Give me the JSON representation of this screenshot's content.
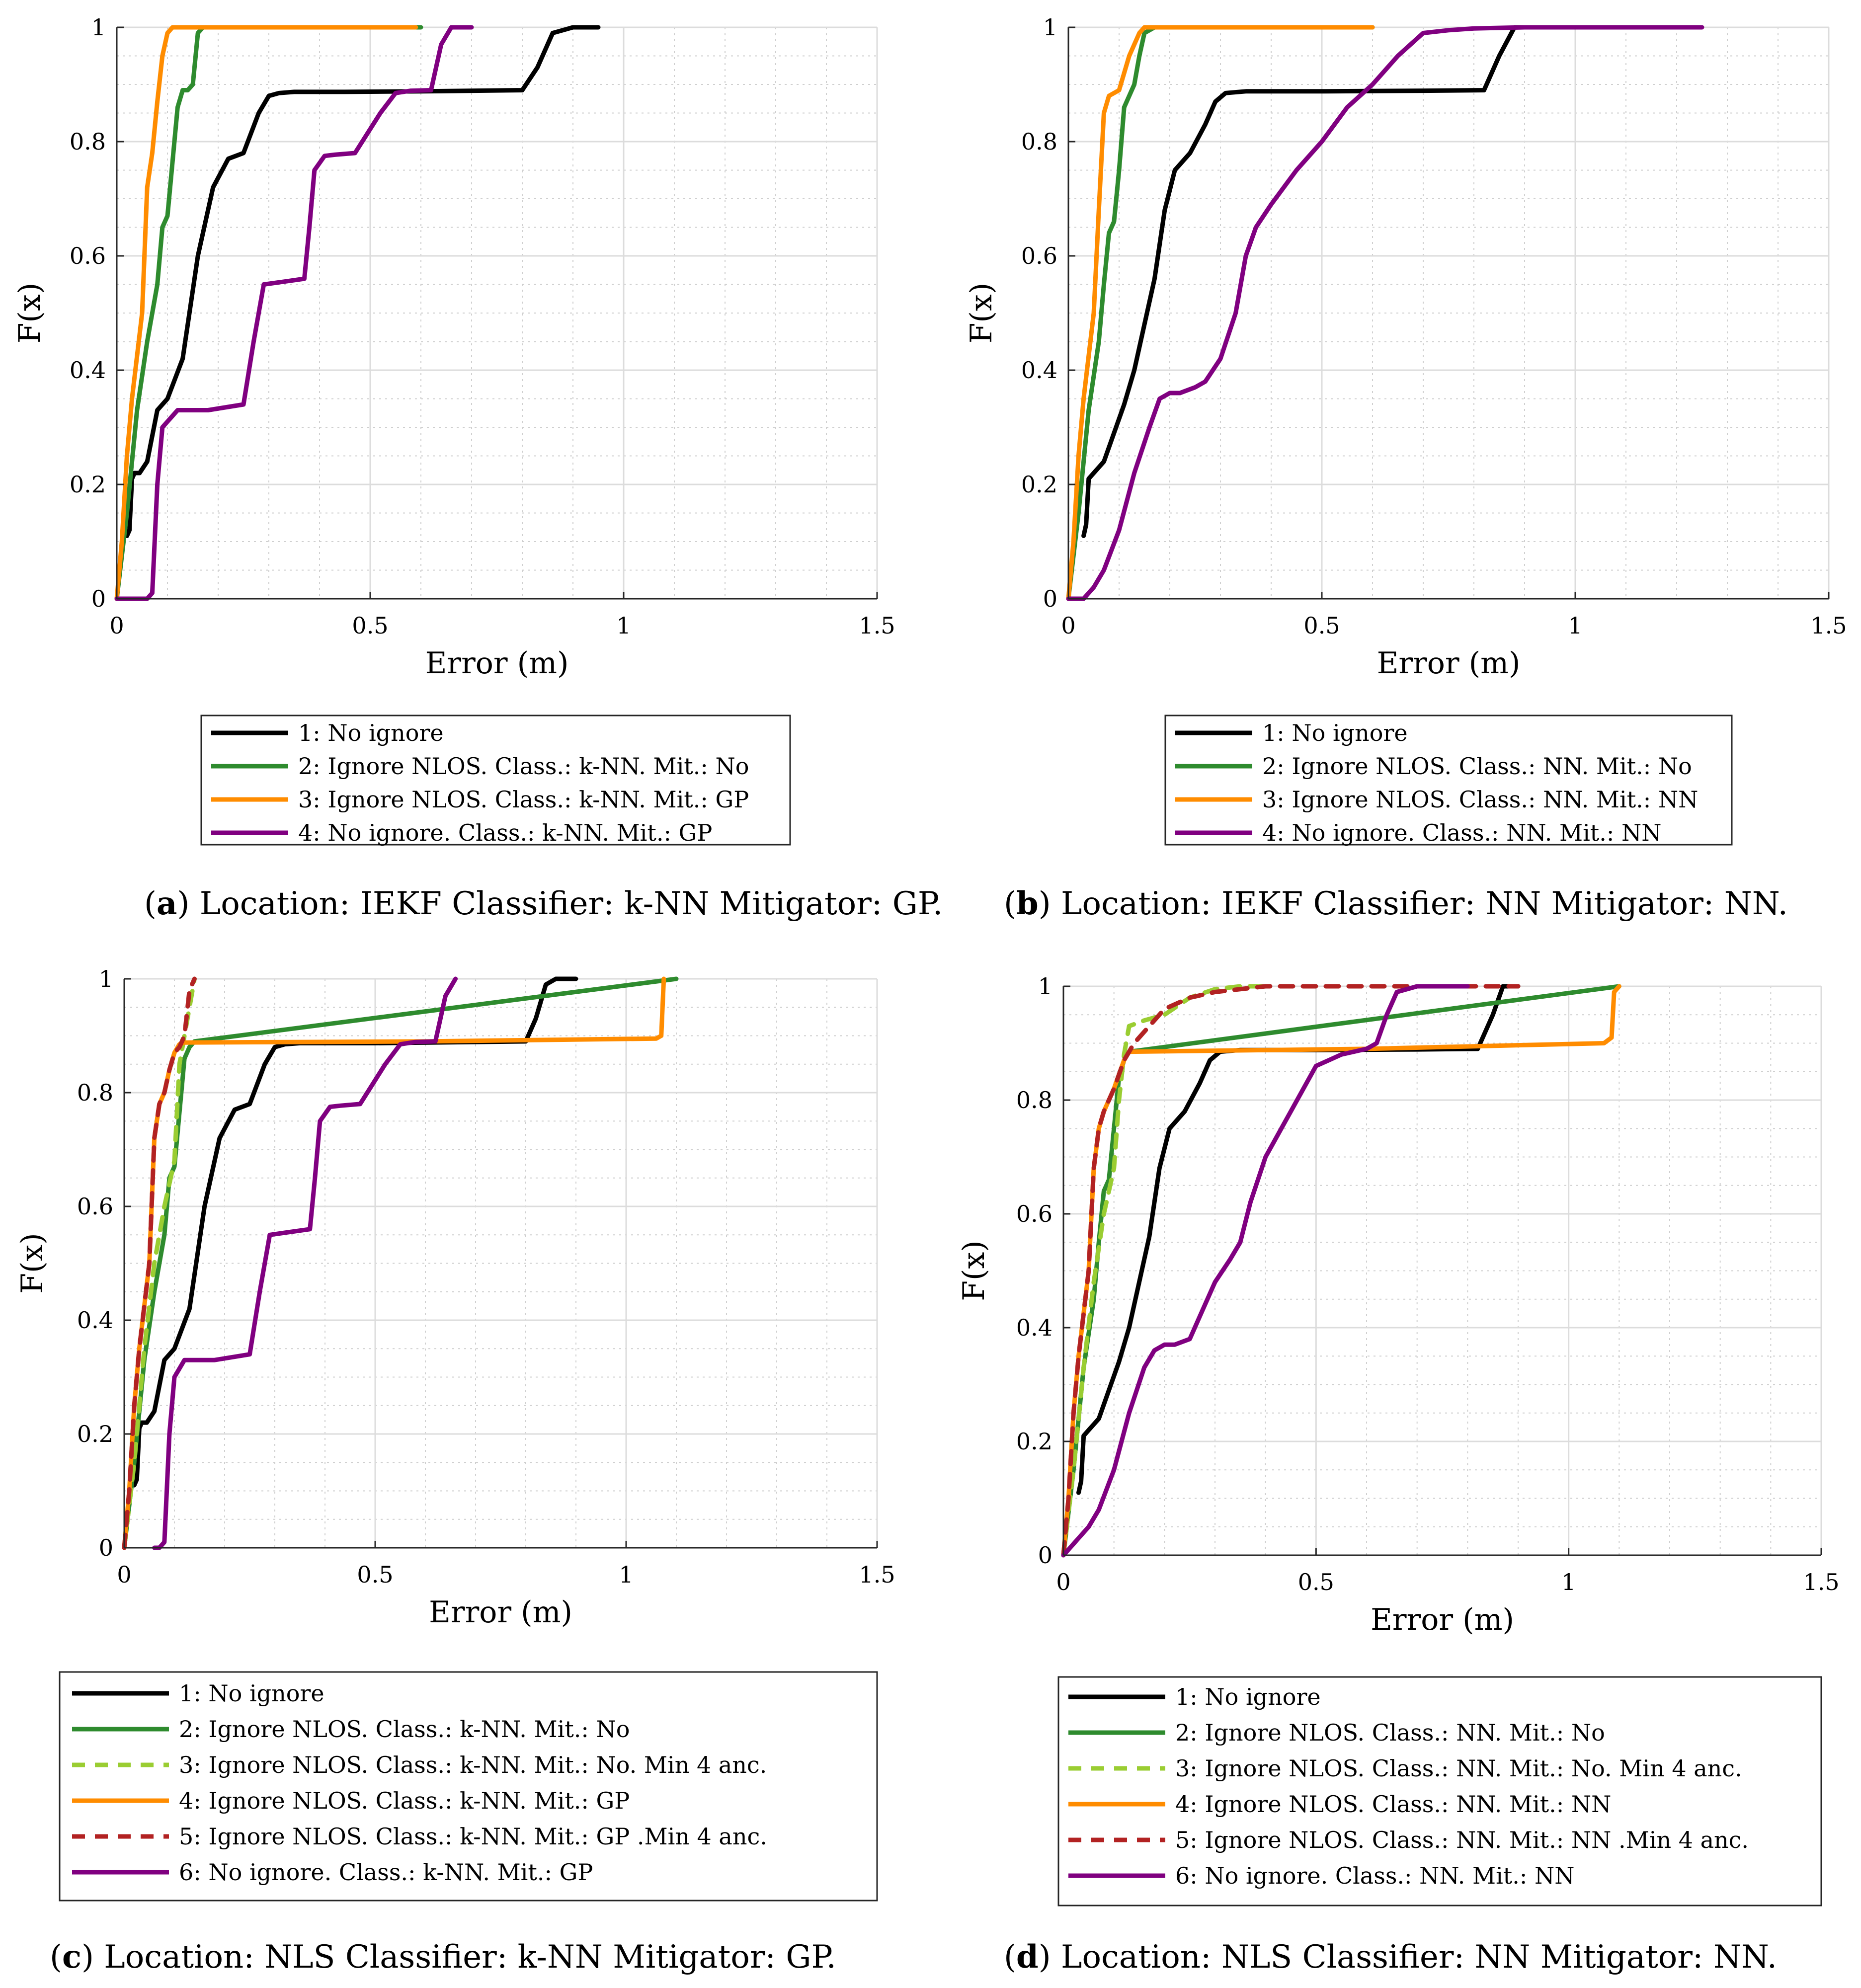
{
  "chart_data": [
    {
      "panel": "a",
      "type": "line",
      "caption_prefix": "(",
      "caption_letter": "a",
      "caption_text": ") Location: IEKF Classifier: k-NN Mitigator: GP.",
      "xlabel": "Error (m)",
      "ylabel": "F(x)",
      "xlim": [
        0,
        1.5
      ],
      "ylim": [
        0,
        1
      ],
      "xticks": [
        0,
        0.5,
        1,
        1.5
      ],
      "xtick_labels": [
        "0",
        "0.5",
        "1",
        "1.5"
      ],
      "yticks": [
        0,
        0.2,
        0.4,
        0.6,
        0.8,
        1
      ],
      "ytick_labels": [
        "0",
        "0.2",
        "0.4",
        "0.6",
        "0.8",
        "1"
      ],
      "grid": true,
      "legend_position": "below",
      "series": [
        {
          "name": "1: No ignore",
          "color": "#000000",
          "dash": false,
          "x": [
            0.02,
            0.025,
            0.03,
            0.035,
            0.045,
            0.06,
            0.08,
            0.1,
            0.13,
            0.16,
            0.19,
            0.22,
            0.25,
            0.28,
            0.3,
            0.32,
            0.35,
            0.45,
            0.6,
            0.8,
            0.83,
            0.86,
            0.9,
            0.95
          ],
          "y": [
            0.11,
            0.12,
            0.21,
            0.22,
            0.22,
            0.24,
            0.33,
            0.35,
            0.42,
            0.6,
            0.72,
            0.77,
            0.78,
            0.85,
            0.88,
            0.885,
            0.887,
            0.887,
            0.888,
            0.89,
            0.93,
            0.99,
            1.0,
            1.0
          ]
        },
        {
          "name": "2: Ignore NLOS. Class.: k-NN. Mit.: No",
          "color": "#2e8b2e",
          "dash": false,
          "x": [
            0,
            0.02,
            0.04,
            0.06,
            0.08,
            0.09,
            0.1,
            0.12,
            0.13,
            0.14,
            0.15,
            0.16,
            0.17,
            0.6
          ],
          "y": [
            0,
            0.15,
            0.33,
            0.45,
            0.55,
            0.65,
            0.67,
            0.86,
            0.89,
            0.89,
            0.9,
            0.99,
            1.0,
            1.0
          ]
        },
        {
          "name": "3: Ignore NLOS. Class.: k-NN. Mit.: GP",
          "color": "#ff8c00",
          "dash": false,
          "x": [
            0,
            0.01,
            0.02,
            0.03,
            0.05,
            0.06,
            0.07,
            0.08,
            0.09,
            0.1,
            0.11,
            0.2,
            0.59
          ],
          "y": [
            0,
            0.1,
            0.25,
            0.35,
            0.5,
            0.72,
            0.78,
            0.87,
            0.95,
            0.99,
            1.0,
            1.0,
            1.0
          ]
        },
        {
          "name": "4: No ignore. Class.: k-NN. Mit.: GP",
          "color": "#800080",
          "dash": false,
          "x": [
            0.0,
            0.06,
            0.07,
            0.08,
            0.09,
            0.12,
            0.14,
            0.18,
            0.25,
            0.27,
            0.29,
            0.33,
            0.37,
            0.38,
            0.39,
            0.41,
            0.43,
            0.47,
            0.52,
            0.55,
            0.58,
            0.62,
            0.64,
            0.66,
            0.7
          ],
          "y": [
            0.0,
            0.0,
            0.01,
            0.2,
            0.3,
            0.33,
            0.33,
            0.33,
            0.34,
            0.45,
            0.55,
            0.555,
            0.56,
            0.65,
            0.75,
            0.775,
            0.777,
            0.78,
            0.85,
            0.885,
            0.889,
            0.89,
            0.97,
            1.0,
            1.0
          ]
        }
      ]
    },
    {
      "panel": "b",
      "type": "line",
      "caption_prefix": "(",
      "caption_letter": "b",
      "caption_text": ") Location: IEKF Classifier: NN Mitigator: NN.",
      "xlabel": "Error (m)",
      "ylabel": "F(x)",
      "xlim": [
        0,
        1.5
      ],
      "ylim": [
        0,
        1
      ],
      "xticks": [
        0,
        0.5,
        1,
        1.5
      ],
      "xtick_labels": [
        "0",
        "0.5",
        "1",
        "1.5"
      ],
      "yticks": [
        0,
        0.2,
        0.4,
        0.6,
        0.8,
        1
      ],
      "ytick_labels": [
        "0",
        "0.2",
        "0.4",
        "0.6",
        "0.8",
        "1"
      ],
      "grid": true,
      "legend_position": "below",
      "series": [
        {
          "name": "1: No ignore",
          "color": "#000000",
          "dash": false,
          "x": [
            0.03,
            0.035,
            0.04,
            0.05,
            0.07,
            0.09,
            0.11,
            0.13,
            0.15,
            0.17,
            0.19,
            0.21,
            0.24,
            0.27,
            0.29,
            0.31,
            0.35,
            0.5,
            0.7,
            0.82,
            0.85,
            0.88,
            0.95
          ],
          "y": [
            0.11,
            0.13,
            0.21,
            0.22,
            0.24,
            0.29,
            0.34,
            0.4,
            0.48,
            0.56,
            0.68,
            0.75,
            0.78,
            0.83,
            0.87,
            0.885,
            0.888,
            0.888,
            0.889,
            0.89,
            0.95,
            1.0,
            1.0
          ]
        },
        {
          "name": "2: Ignore NLOS. Class.: NN. Mit.: No",
          "color": "#2e8b2e",
          "dash": false,
          "x": [
            0,
            0.02,
            0.04,
            0.06,
            0.07,
            0.08,
            0.09,
            0.1,
            0.11,
            0.12,
            0.13,
            0.14,
            0.15,
            0.17,
            0.3,
            0.6
          ],
          "y": [
            0,
            0.15,
            0.33,
            0.45,
            0.55,
            0.64,
            0.66,
            0.75,
            0.86,
            0.88,
            0.9,
            0.95,
            0.99,
            1.0,
            1.0,
            1.0
          ]
        },
        {
          "name": "3: Ignore NLOS. Class.: NN. Mit.: NN",
          "color": "#ff8c00",
          "dash": false,
          "x": [
            0,
            0.01,
            0.02,
            0.03,
            0.05,
            0.06,
            0.07,
            0.08,
            0.1,
            0.12,
            0.14,
            0.15,
            0.3,
            0.6
          ],
          "y": [
            0,
            0.1,
            0.25,
            0.35,
            0.5,
            0.68,
            0.85,
            0.88,
            0.89,
            0.95,
            0.99,
            1.0,
            1.0,
            1.0
          ]
        },
        {
          "name": "4: No ignore. Class.: NN. Mit.: NN",
          "color": "#800080",
          "dash": false,
          "x": [
            0.0,
            0.03,
            0.05,
            0.07,
            0.1,
            0.13,
            0.16,
            0.18,
            0.2,
            0.22,
            0.25,
            0.27,
            0.3,
            0.33,
            0.35,
            0.37,
            0.4,
            0.45,
            0.5,
            0.55,
            0.6,
            0.65,
            0.7,
            0.75,
            0.8,
            0.9,
            1.0,
            1.25
          ],
          "y": [
            0.0,
            0.0,
            0.02,
            0.05,
            0.12,
            0.22,
            0.3,
            0.35,
            0.36,
            0.36,
            0.37,
            0.38,
            0.42,
            0.5,
            0.6,
            0.65,
            0.69,
            0.75,
            0.8,
            0.86,
            0.9,
            0.95,
            0.99,
            0.995,
            0.998,
            1.0,
            1.0,
            1.0
          ]
        }
      ]
    },
    {
      "panel": "c",
      "type": "line",
      "caption_prefix": "(",
      "caption_letter": "c",
      "caption_text": ") Location: NLS Classifier: k-NN Mitigator: GP.",
      "xlabel": "Error (m)",
      "ylabel": "F(x)",
      "xlim": [
        0,
        1.5
      ],
      "ylim": [
        0,
        1
      ],
      "xticks": [
        0,
        0.5,
        1,
        1.5
      ],
      "xtick_labels": [
        "0",
        "0.5",
        "1",
        "1.5"
      ],
      "yticks": [
        0,
        0.2,
        0.4,
        0.6,
        0.8,
        1
      ],
      "ytick_labels": [
        "0",
        "0.2",
        "0.4",
        "0.6",
        "0.8",
        "1"
      ],
      "grid": true,
      "legend_position": "below",
      "series": [
        {
          "name": "1: No ignore",
          "color": "#000000",
          "dash": false,
          "x": [
            0.02,
            0.025,
            0.03,
            0.035,
            0.045,
            0.06,
            0.08,
            0.1,
            0.13,
            0.16,
            0.19,
            0.22,
            0.25,
            0.28,
            0.3,
            0.32,
            0.35,
            0.5,
            0.6,
            0.8,
            0.82,
            0.84,
            0.86,
            0.9
          ],
          "y": [
            0.11,
            0.12,
            0.21,
            0.22,
            0.22,
            0.24,
            0.33,
            0.35,
            0.42,
            0.6,
            0.72,
            0.77,
            0.78,
            0.85,
            0.88,
            0.885,
            0.887,
            0.887,
            0.888,
            0.89,
            0.93,
            0.99,
            1.0,
            1.0
          ]
        },
        {
          "name": "2: Ignore NLOS. Class.: k-NN. Mit.: No",
          "color": "#2e8b2e",
          "dash": false,
          "x": [
            0,
            0.02,
            0.04,
            0.06,
            0.08,
            0.09,
            0.1,
            0.12,
            0.13,
            0.14,
            1.1
          ],
          "y": [
            0,
            0.15,
            0.33,
            0.45,
            0.55,
            0.65,
            0.67,
            0.86,
            0.88,
            0.89,
            1.0
          ]
        },
        {
          "name": "3: Ignore NLOS. Class.: k-NN. Mit.: No. Min 4 anc.",
          "color": "#9acd32",
          "dash": true,
          "x": [
            0,
            0.02,
            0.04,
            0.06,
            0.08,
            0.1,
            0.11,
            0.12,
            0.13,
            0.14
          ],
          "y": [
            0,
            0.15,
            0.35,
            0.5,
            0.6,
            0.68,
            0.85,
            0.9,
            0.95,
            1.0
          ]
        },
        {
          "name": "4: Ignore NLOS. Class.: k-NN. Mit.: GP",
          "color": "#ff8c00",
          "dash": false,
          "x": [
            0,
            0.01,
            0.02,
            0.03,
            0.05,
            0.06,
            0.07,
            0.08,
            0.09,
            0.1,
            0.11,
            0.12,
            0.6,
            1.06,
            1.07,
            1.075
          ],
          "y": [
            0,
            0.1,
            0.25,
            0.35,
            0.5,
            0.72,
            0.78,
            0.8,
            0.84,
            0.87,
            0.885,
            0.888,
            0.89,
            0.895,
            0.9,
            1.0
          ]
        },
        {
          "name": "5: Ignore NLOS. Class.: k-NN. Mit.: GP .Min 4 anc.",
          "color": "#b22222",
          "dash": true,
          "x": [
            0,
            0.01,
            0.02,
            0.03,
            0.05,
            0.06,
            0.07,
            0.08,
            0.09,
            0.1,
            0.11,
            0.12,
            0.13,
            0.14
          ],
          "y": [
            0,
            0.1,
            0.25,
            0.35,
            0.5,
            0.72,
            0.78,
            0.8,
            0.84,
            0.87,
            0.88,
            0.9,
            0.98,
            1.0
          ]
        },
        {
          "name": "6: No ignore. Class.: k-NN. Mit.: GP",
          "color": "#800080",
          "dash": false,
          "x": [
            0.06,
            0.07,
            0.08,
            0.09,
            0.1,
            0.12,
            0.14,
            0.18,
            0.25,
            0.27,
            0.29,
            0.33,
            0.37,
            0.38,
            0.39,
            0.41,
            0.43,
            0.47,
            0.52,
            0.55,
            0.58,
            0.62,
            0.64,
            0.66
          ],
          "y": [
            0.0,
            0.0,
            0.01,
            0.2,
            0.3,
            0.33,
            0.33,
            0.33,
            0.34,
            0.45,
            0.55,
            0.555,
            0.56,
            0.65,
            0.75,
            0.775,
            0.777,
            0.78,
            0.85,
            0.885,
            0.889,
            0.89,
            0.97,
            1.0
          ]
        }
      ]
    },
    {
      "panel": "d",
      "type": "line",
      "caption_prefix": "(",
      "caption_letter": "d",
      "caption_text": ") Location: NLS Classifier: NN Mitigator: NN.",
      "xlabel": "Error (m)",
      "ylabel": "F(x)",
      "xlim": [
        0,
        1.5
      ],
      "ylim": [
        0,
        1
      ],
      "xticks": [
        0,
        0.5,
        1,
        1.5
      ],
      "xtick_labels": [
        "0",
        "0.5",
        "1",
        "1.5"
      ],
      "yticks": [
        0,
        0.2,
        0.4,
        0.6,
        0.8,
        1
      ],
      "ytick_labels": [
        "0",
        "0.2",
        "0.4",
        "0.6",
        "0.8",
        "1"
      ],
      "grid": true,
      "legend_position": "below",
      "series": [
        {
          "name": "1: No ignore",
          "color": "#000000",
          "dash": false,
          "x": [
            0.03,
            0.035,
            0.04,
            0.05,
            0.07,
            0.09,
            0.11,
            0.13,
            0.15,
            0.17,
            0.19,
            0.21,
            0.24,
            0.27,
            0.29,
            0.31,
            0.35,
            0.5,
            0.7,
            0.82,
            0.85,
            0.87,
            0.9
          ],
          "y": [
            0.11,
            0.13,
            0.21,
            0.22,
            0.24,
            0.29,
            0.34,
            0.4,
            0.48,
            0.56,
            0.68,
            0.75,
            0.78,
            0.83,
            0.87,
            0.885,
            0.888,
            0.888,
            0.889,
            0.89,
            0.95,
            1.0,
            1.0
          ]
        },
        {
          "name": "2: Ignore NLOS. Class.: NN. Mit.: No",
          "color": "#2e8b2e",
          "dash": false,
          "x": [
            0,
            0.02,
            0.04,
            0.06,
            0.07,
            0.08,
            0.09,
            0.1,
            0.11,
            0.12,
            0.13,
            1.1
          ],
          "y": [
            0,
            0.15,
            0.33,
            0.45,
            0.55,
            0.64,
            0.66,
            0.75,
            0.84,
            0.87,
            0.885,
            1.0
          ]
        },
        {
          "name": "3: Ignore NLOS. Class.: NN. Mit.: No. Min 4 anc.",
          "color": "#9acd32",
          "dash": true,
          "x": [
            0,
            0.02,
            0.04,
            0.06,
            0.08,
            0.1,
            0.11,
            0.12,
            0.13,
            0.16,
            0.2,
            0.25,
            0.3,
            0.35,
            0.4
          ],
          "y": [
            0,
            0.15,
            0.33,
            0.48,
            0.6,
            0.68,
            0.8,
            0.88,
            0.93,
            0.94,
            0.95,
            0.98,
            0.995,
            1.0,
            1.0
          ]
        },
        {
          "name": "4: Ignore NLOS. Class.: NN. Mit.: NN",
          "color": "#ff8c00",
          "dash": false,
          "x": [
            0,
            0.01,
            0.02,
            0.03,
            0.05,
            0.06,
            0.07,
            0.08,
            0.1,
            0.12,
            0.13,
            0.6,
            1.07,
            1.085,
            1.09,
            1.1
          ],
          "y": [
            0,
            0.1,
            0.25,
            0.35,
            0.5,
            0.68,
            0.75,
            0.78,
            0.82,
            0.87,
            0.885,
            0.89,
            0.9,
            0.91,
            0.99,
            1.0
          ]
        },
        {
          "name": "5: Ignore NLOS. Class.: NN. Mit.: NN .Min 4 anc.",
          "color": "#b22222",
          "dash": true,
          "x": [
            0,
            0.01,
            0.02,
            0.03,
            0.05,
            0.06,
            0.07,
            0.08,
            0.1,
            0.12,
            0.14,
            0.17,
            0.2,
            0.25,
            0.3,
            0.4,
            0.6,
            0.9
          ],
          "y": [
            0,
            0.1,
            0.25,
            0.35,
            0.5,
            0.68,
            0.75,
            0.78,
            0.82,
            0.87,
            0.9,
            0.93,
            0.96,
            0.98,
            0.99,
            1.0,
            1.0,
            1.0
          ]
        },
        {
          "name": "6: No ignore. Class.: NN. Mit.: NN",
          "color": "#800080",
          "dash": false,
          "x": [
            0.0,
            0.01,
            0.03,
            0.05,
            0.07,
            0.1,
            0.13,
            0.16,
            0.18,
            0.2,
            0.22,
            0.25,
            0.27,
            0.3,
            0.33,
            0.35,
            0.37,
            0.4,
            0.45,
            0.5,
            0.55,
            0.6,
            0.62,
            0.64,
            0.66,
            0.7,
            0.8
          ],
          "y": [
            0.0,
            0.01,
            0.03,
            0.05,
            0.08,
            0.15,
            0.25,
            0.33,
            0.36,
            0.37,
            0.37,
            0.38,
            0.42,
            0.48,
            0.52,
            0.55,
            0.62,
            0.7,
            0.78,
            0.86,
            0.88,
            0.89,
            0.9,
            0.95,
            0.99,
            1.0,
            1.0
          ]
        }
      ]
    }
  ]
}
